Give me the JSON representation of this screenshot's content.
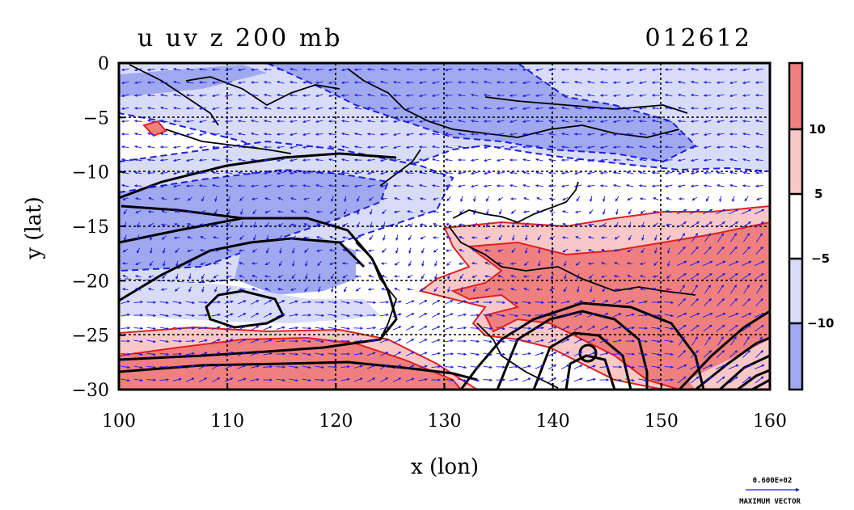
{
  "chart_data": {
    "type": "heatmap",
    "title": "u uv z 200 mb",
    "date_label": "012612",
    "xlabel": "x (lon)",
    "ylabel": "y (lat)",
    "xlim": [
      100,
      160
    ],
    "ylim": [
      -30,
      0
    ],
    "x_ticks": [
      "100",
      "110",
      "120",
      "130",
      "140",
      "150",
      "160"
    ],
    "y_ticks": [
      "0",
      "−5",
      "−10",
      "−15",
      "−20",
      "−25",
      "−30"
    ],
    "grid": true,
    "colorbar": {
      "placement": "right",
      "tick_labels": [
        "10",
        "5",
        "−5",
        "−10"
      ],
      "bands": [
        {
          "range": "> 10",
          "color": "#f08080"
        },
        {
          "range": "5 to 10",
          "color": "#f8c8c8"
        },
        {
          "range": "-5 to 5",
          "color": "#ffffff"
        },
        {
          "range": "-10 to -5",
          "color": "#d8dcf8"
        },
        {
          "range": "< -10",
          "color": "#a0a8f0"
        }
      ]
    },
    "vector_key": {
      "value": "0.600E+02",
      "caption": "MAXIMUM VECTOR"
    },
    "colors": {
      "positive_contour": "#e02020",
      "negative_contour": "#2020e0",
      "height_contour": "#000000",
      "wind_vector": "#1a1ae6"
    }
  }
}
